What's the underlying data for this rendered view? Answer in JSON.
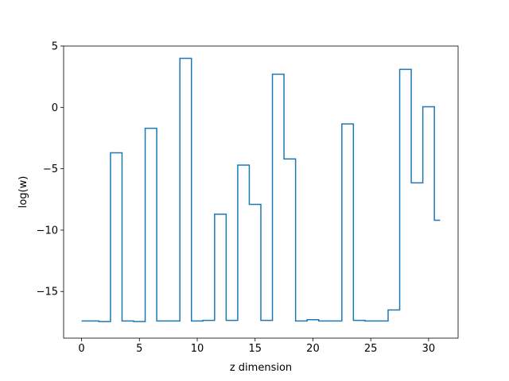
{
  "chart_data": {
    "type": "line",
    "drawstyle": "steps-mid",
    "title": "",
    "xlabel": "z dimension",
    "ylabel": "log(w)",
    "xlim": [
      -1.55,
      32.55
    ],
    "ylim": [
      -18.8,
      5
    ],
    "xticks": [
      0,
      5,
      10,
      15,
      20,
      25,
      30
    ],
    "yticks": [
      5,
      0,
      -5,
      -10,
      -15
    ],
    "ytick_labels": [
      "5",
      "0",
      "−5",
      "−10",
      "−15"
    ],
    "grid": false,
    "legend": "none",
    "line_color": "#1f77b4",
    "series": [
      {
        "x": [
          0,
          1,
          2,
          3,
          4,
          5,
          6,
          7,
          8,
          9,
          10,
          11,
          12,
          13,
          14,
          15,
          16,
          17,
          18,
          19,
          20,
          21,
          22,
          23,
          24,
          25,
          26,
          27,
          28,
          29,
          30,
          31
        ],
        "values": [
          -17.4,
          -17.4,
          -17.45,
          -3.7,
          -17.4,
          -17.45,
          -1.7,
          -17.4,
          -17.4,
          4.0,
          -17.4,
          -17.35,
          -8.7,
          -17.35,
          -4.7,
          -7.9,
          -17.35,
          2.7,
          -4.2,
          -17.4,
          -17.3,
          -17.4,
          -17.4,
          -1.35,
          -17.35,
          -17.4,
          -17.4,
          -16.5,
          3.1,
          -6.15,
          0.05,
          -9.2
        ]
      }
    ]
  }
}
